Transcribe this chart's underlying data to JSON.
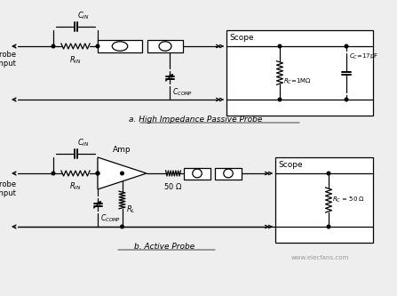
{
  "bg_color": "#eeeeee",
  "title_a": "a. High Impedance Passive Probe",
  "title_b": "b. Active Probe",
  "watermark": "www.elecfans.com"
}
